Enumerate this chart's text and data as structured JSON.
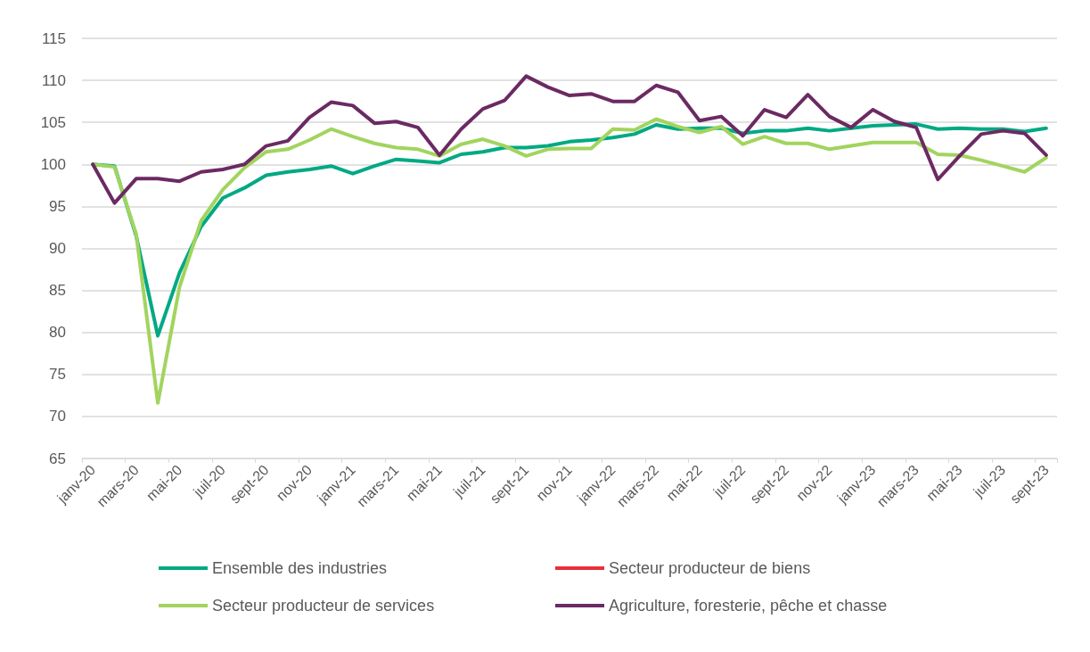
{
  "chart_data": {
    "type": "line",
    "categories": [
      "janv-20",
      null,
      "mars-20",
      null,
      "mai-20",
      null,
      "juil-20",
      null,
      "sept-20",
      null,
      "nov-20",
      null,
      "janv-21",
      null,
      "mars-21",
      null,
      "mai-21",
      null,
      "juil-21",
      null,
      "sept-21",
      null,
      "nov-21",
      null,
      "janv-22",
      null,
      "mars-22",
      null,
      "mai-22",
      null,
      "juil-22",
      null,
      "sept-22",
      null,
      "nov-22",
      null,
      "janv-23",
      null,
      "mars-23",
      null,
      "mai-23",
      null,
      "juil-23",
      null,
      "sept-23"
    ],
    "ylim": [
      65,
      115
    ],
    "yticks": [
      65,
      70,
      75,
      80,
      85,
      90,
      95,
      100,
      105,
      110,
      115
    ],
    "grid": "y",
    "legend": "bottom",
    "marker": "none",
    "line_style": "solid",
    "series": [
      {
        "name": "Ensemble des industries",
        "color": "#00a984",
        "values": [
          100,
          99.8,
          91.5,
          79.6,
          87.1,
          92.6,
          96.0,
          97.2,
          98.7,
          99.1,
          99.4,
          99.8,
          98.9,
          99.8,
          100.6,
          100.4,
          100.2,
          101.2,
          101.5,
          102.0,
          102.0,
          102.2,
          102.7,
          102.9,
          103.2,
          103.6,
          104.7,
          104.2,
          104.3,
          104.3,
          103.7,
          104.0,
          104.0,
          104.3,
          104.0,
          104.3,
          104.6,
          104.7,
          104.8,
          104.2,
          104.3,
          104.2,
          104.2,
          103.9,
          104.3
        ]
      },
      {
        "name": "Secteur producteur de biens",
        "color": "#e8303a",
        "values": [
          null,
          null,
          null,
          null,
          null,
          null,
          null,
          null,
          null,
          null,
          null,
          null,
          null,
          null,
          null,
          null,
          null,
          null,
          null,
          null,
          null,
          null,
          null,
          null,
          null,
          null,
          null,
          null,
          null,
          null,
          null,
          null,
          null,
          null,
          null,
          null,
          null,
          null,
          null,
          null,
          null,
          null,
          null,
          null,
          null
        ]
      },
      {
        "name": "Secteur producteur de services",
        "color": "#a2d45e",
        "values": [
          100,
          99.7,
          91.7,
          71.6,
          85.4,
          93.3,
          97.0,
          99.6,
          101.5,
          101.8,
          102.9,
          104.2,
          103.3,
          102.5,
          102.0,
          101.8,
          101.0,
          102.4,
          103.0,
          102.2,
          101.0,
          101.8,
          101.9,
          101.9,
          104.2,
          104.1,
          105.4,
          104.5,
          103.8,
          104.5,
          102.4,
          103.3,
          102.5,
          102.5,
          101.8,
          102.2,
          102.6,
          102.6,
          102.6,
          101.2,
          101.1,
          100.5,
          99.8,
          99.1,
          100.8
        ]
      },
      {
        "name": "Agriculture, foresterie, pêche et chasse",
        "color": "#6b2a63",
        "values": [
          100,
          95.4,
          98.3,
          98.3,
          98.0,
          99.1,
          99.4,
          100.0,
          102.2,
          102.8,
          105.6,
          107.4,
          107.0,
          104.9,
          105.1,
          104.4,
          101.1,
          104.2,
          106.6,
          107.6,
          110.5,
          109.2,
          108.2,
          108.4,
          107.5,
          107.5,
          109.4,
          108.6,
          105.2,
          105.7,
          103.4,
          106.5,
          105.6,
          108.3,
          105.7,
          104.4,
          106.5,
          105.1,
          104.4,
          98.2,
          101.0,
          103.6,
          104.0,
          103.7,
          101.1
        ]
      }
    ]
  }
}
